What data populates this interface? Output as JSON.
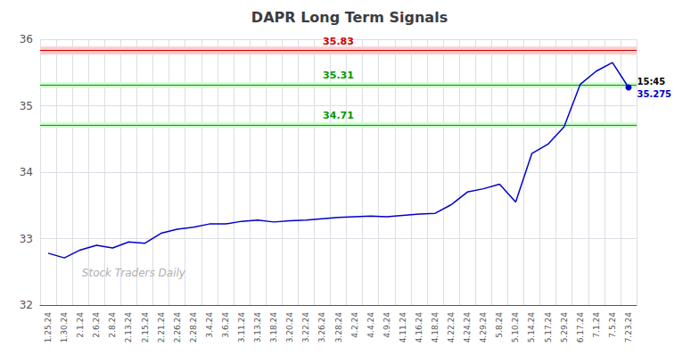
{
  "chart_data": {
    "type": "line",
    "title": "DAPR Long Term Signals",
    "categories": [
      "1.25.24",
      "1.30.24",
      "2.1.24",
      "2.6.24",
      "2.8.24",
      "2.13.24",
      "2.15.24",
      "2.21.24",
      "2.26.24",
      "2.28.24",
      "3.4.24",
      "3.6.24",
      "3.11.24",
      "3.13.24",
      "3.18.24",
      "3.20.24",
      "3.22.24",
      "3.26.24",
      "3.28.24",
      "4.2.24",
      "4.4.24",
      "4.9.24",
      "4.11.24",
      "4.16.24",
      "4.18.24",
      "4.22.24",
      "4.24.24",
      "4.29.24",
      "5.8.24",
      "5.10.24",
      "5.14.24",
      "5.17.24",
      "5.29.24",
      "6.17.24",
      "7.1.24",
      "7.5.24",
      "7.23.24"
    ],
    "values": [
      32.78,
      32.71,
      32.83,
      32.9,
      32.86,
      32.95,
      32.93,
      33.08,
      33.14,
      33.17,
      33.22,
      33.22,
      33.26,
      33.28,
      33.25,
      33.27,
      33.28,
      33.3,
      33.32,
      33.33,
      33.34,
      33.33,
      33.35,
      33.37,
      33.38,
      33.51,
      33.7,
      33.75,
      33.82,
      33.55,
      34.28,
      34.42,
      34.68,
      35.32,
      35.52,
      35.65,
      35.275
    ],
    "color": "#0000cc",
    "ylim": [
      32,
      36
    ],
    "yticks": [
      32,
      33,
      34,
      35,
      36
    ],
    "grid": true,
    "reference_lines": [
      {
        "value": 35.83,
        "color": "#cc0000",
        "band": [
          35.77,
          35.89
        ],
        "band_color": "#ffcccc"
      },
      {
        "value": 35.31,
        "color": "#009900",
        "band": [
          35.27,
          35.35
        ],
        "band_color": "#ccffcc"
      },
      {
        "value": 34.71,
        "color": "#009900",
        "band": [
          34.67,
          34.75
        ],
        "band_color": "#ccffcc"
      }
    ],
    "last_point": {
      "value": 35.275,
      "time": "15:45"
    },
    "watermark": "Stock Traders Daily"
  }
}
